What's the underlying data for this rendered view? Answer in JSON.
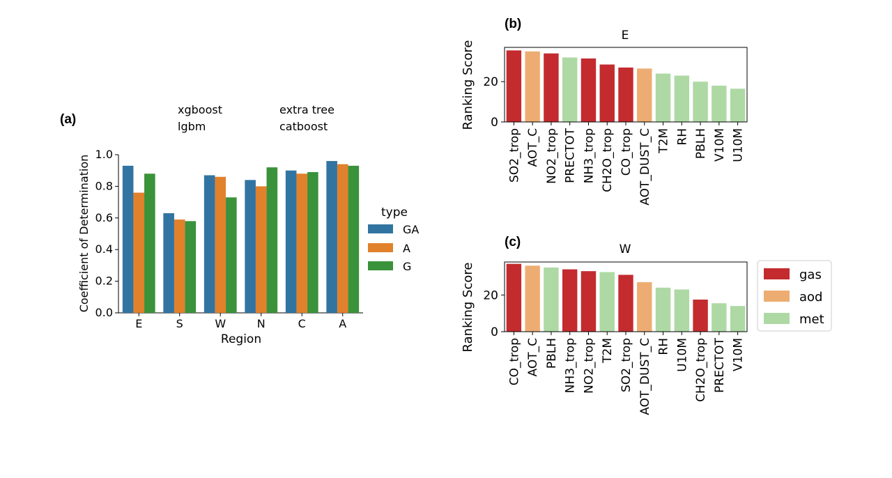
{
  "panels": {
    "a": {
      "label": "(a)",
      "models": [
        "xgboost",
        "lgbm",
        "extra tree",
        "catboost"
      ],
      "legend": {
        "title": "type",
        "entries": [
          {
            "name": "GA",
            "color": "#3274a1"
          },
          {
            "name": "A",
            "color": "#e1812c"
          },
          {
            "name": "G",
            "color": "#3a923a"
          }
        ]
      }
    },
    "b": {
      "label": "(b)"
    },
    "c": {
      "label": "(c)"
    },
    "legend_bc": {
      "entries": [
        {
          "name": "gas",
          "color": "#c32b2f"
        },
        {
          "name": "aod",
          "color": "#edad72"
        },
        {
          "name": "met",
          "color": "#aed9a4"
        }
      ]
    }
  },
  "chart_data": [
    {
      "type": "bar",
      "title": "",
      "xlabel": "Region",
      "ylabel": "Coefficient of Determination",
      "categories": [
        "E",
        "S",
        "W",
        "N",
        "C",
        "A"
      ],
      "ylim": [
        0,
        1.0
      ],
      "yticks": [
        "0.0",
        "0.2",
        "0.4",
        "0.6",
        "0.8",
        "1.0"
      ],
      "series": [
        {
          "name": "GA",
          "values": [
            0.93,
            0.63,
            0.87,
            0.84,
            0.9,
            0.96
          ]
        },
        {
          "name": "A",
          "values": [
            0.76,
            0.59,
            0.86,
            0.8,
            0.88,
            0.94
          ]
        },
        {
          "name": "G",
          "values": [
            0.88,
            0.58,
            0.73,
            0.92,
            0.89,
            0.93
          ]
        }
      ]
    },
    {
      "type": "bar",
      "title": "E",
      "xlabel": "",
      "ylabel": "Ranking Score",
      "ylim": [
        0,
        37
      ],
      "yticks": [
        "0",
        "20"
      ],
      "categories": [
        "SO2_trop",
        "AOT_C",
        "NO2_trop",
        "PRECTOT",
        "NH3_trop",
        "CH2O_trop",
        "CO_trop",
        "AOT_DUST_C",
        "T2M",
        "RH",
        "PBLH",
        "V10M",
        "U10M"
      ],
      "values": [
        35.5,
        35,
        34,
        32,
        31.5,
        28.5,
        27,
        26.5,
        24,
        23,
        20,
        18,
        16.5
      ],
      "groups": [
        "gas",
        "aod",
        "gas",
        "met",
        "gas",
        "gas",
        "gas",
        "aod",
        "met",
        "met",
        "met",
        "met",
        "met"
      ]
    },
    {
      "type": "bar",
      "title": "W",
      "xlabel": "",
      "ylabel": "Ranking Score",
      "ylim": [
        0,
        38
      ],
      "yticks": [
        "0",
        "20"
      ],
      "categories": [
        "CO_trop",
        "AOT_C",
        "PBLH",
        "NH3_trop",
        "NO2_trop",
        "T2M",
        "SO2_trop",
        "AOT_DUST_C",
        "RH",
        "U10M",
        "CH2O_trop",
        "PRECTOT",
        "V10M"
      ],
      "values": [
        37,
        36,
        35,
        34,
        33,
        32.5,
        31,
        27,
        24,
        23,
        17.5,
        15.5,
        14
      ],
      "groups": [
        "gas",
        "aod",
        "met",
        "gas",
        "gas",
        "met",
        "gas",
        "aod",
        "met",
        "met",
        "gas",
        "met",
        "met"
      ]
    }
  ]
}
